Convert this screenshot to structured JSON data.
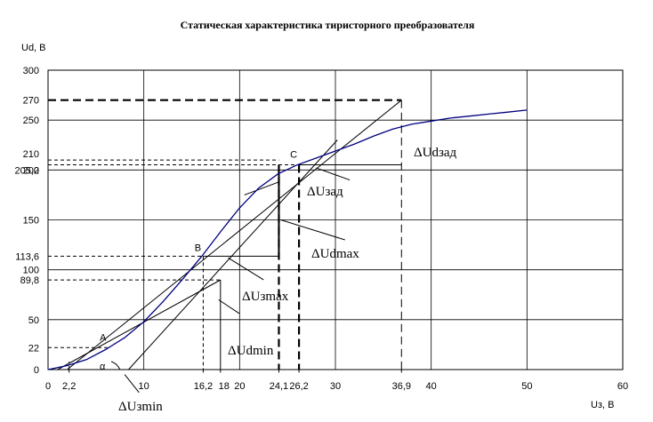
{
  "chart_data": {
    "type": "line",
    "title": "Статическая  характеристика  тиристорного  преобразователя",
    "ylabel": "Ud, В",
    "xlabel": "Uз, В",
    "xlim": [
      0,
      60
    ],
    "ylim": [
      0,
      300
    ],
    "grid": true,
    "x_ticks": [
      "0",
      "10",
      "20",
      "30",
      "40",
      "50",
      "60"
    ],
    "y_ticks": [
      "0",
      "50",
      "100",
      "150",
      "200",
      "250",
      "300"
    ],
    "x_marks": [
      "2,2",
      "16,2",
      "18",
      "24,1",
      "26,2",
      "36,9"
    ],
    "y_marks": [
      "22",
      "89,8",
      "113,6",
      "205,2",
      "210",
      "270"
    ],
    "series": [
      {
        "color": "#000080",
        "x": [
          0,
          2,
          4,
          6,
          8,
          10,
          12,
          14,
          16,
          18,
          20,
          22,
          24,
          26,
          28,
          30,
          32,
          34,
          36,
          38,
          40,
          42,
          44,
          46,
          48,
          50
        ],
        "y": [
          0,
          4,
          10,
          20,
          32,
          48,
          68,
          90,
          113,
          138,
          162,
          182,
          196,
          205,
          212,
          219,
          226,
          234,
          241,
          246,
          249,
          252,
          254,
          256,
          258,
          260
        ]
      }
    ],
    "points": [
      {
        "label": "A",
        "x": 6.2,
        "y": 22
      },
      {
        "label": "B",
        "x": 16.2,
        "y": 113.6
      },
      {
        "label": "C",
        "x": 26.2,
        "y": 205.2
      }
    ],
    "annotations": [
      "ΔUзmin",
      "ΔUdmin",
      "ΔUзmax",
      "ΔUdmax",
      "ΔUзад",
      "ΔUdзад",
      "α"
    ]
  }
}
